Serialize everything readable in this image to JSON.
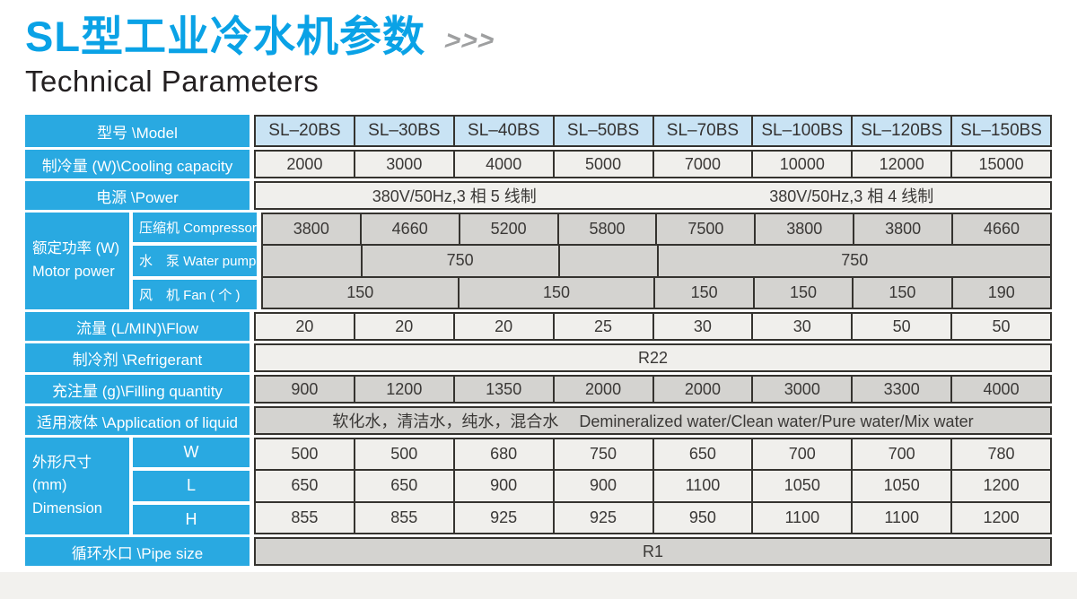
{
  "page": {
    "title": "SL型工业冷水机参数",
    "title_arrows": ">>>",
    "subtitle": "Technical Parameters"
  },
  "colors": {
    "title_blue": "#0aa2e6",
    "label_blue": "#29a9e1",
    "header_blue": "#c9e3f4",
    "row_light": "#f0efec",
    "row_gray": "#d4d3d0",
    "border": "#35332f"
  },
  "table": {
    "model": {
      "label": "型号 \\Model",
      "values": [
        "SL–20BS",
        "SL–30BS",
        "SL–40BS",
        "SL–50BS",
        "SL–70BS",
        "SL–100BS",
        "SL–120BS",
        "SL–150BS"
      ]
    },
    "cooling": {
      "label": "制冷量 (W)\\Cooling capacity",
      "values": [
        "2000",
        "3000",
        "4000",
        "5000",
        "7000",
        "10000",
        "12000",
        "15000"
      ]
    },
    "power": {
      "label": "电源 \\Power",
      "left": "380V/50Hz,3 相 5 线制",
      "right": "380V/50Hz,3 相 4 线制"
    },
    "motor": {
      "label1": "额定功率 (W)",
      "label2": "Motor power",
      "compressor": {
        "label": "压缩机 Compressor",
        "values": [
          "3800",
          "4660",
          "5200",
          "5800",
          "7500",
          "3800",
          "3800",
          "4660"
        ]
      },
      "pump": {
        "label": "水　泵 Water pump",
        "c0": "",
        "c1": "750",
        "c2": "",
        "c3": "750"
      },
      "fan": {
        "label": "风　机 Fan ( 个 )",
        "c0": "150",
        "c1": "150",
        "c2": "150",
        "c3": "150",
        "c4": "150",
        "c5": "190"
      }
    },
    "flow": {
      "label": "流量 (L/MIN)\\Flow",
      "values": [
        "20",
        "20",
        "20",
        "25",
        "30",
        "30",
        "50",
        "50"
      ]
    },
    "refrigerant": {
      "label": "制冷剂 \\Refrigerant",
      "value": "R22"
    },
    "filling": {
      "label": "充注量 (g)\\Filling quantity",
      "values": [
        "900",
        "1200",
        "1350",
        "2000",
        "2000",
        "3000",
        "3300",
        "4000"
      ]
    },
    "liquid": {
      "label": "适用液体 \\Application of liquid",
      "value": "软化水，清洁水，纯水，混合水　 Demineralized water/Clean water/Pure water/Mix water"
    },
    "dimension": {
      "label1": "外形尺寸 (mm)",
      "label2": "Dimension",
      "w": {
        "label": "W",
        "values": [
          "500",
          "500",
          "680",
          "750",
          "650",
          "700",
          "700",
          "780"
        ]
      },
      "l": {
        "label": "L",
        "values": [
          "650",
          "650",
          "900",
          "900",
          "1100",
          "1050",
          "1050",
          "1200"
        ]
      },
      "h": {
        "label": "H",
        "values": [
          "855",
          "855",
          "925",
          "925",
          "950",
          "1100",
          "1100",
          "1200"
        ]
      }
    },
    "pipe": {
      "label": "循环水口 \\Pipe size",
      "value": "R1"
    }
  }
}
